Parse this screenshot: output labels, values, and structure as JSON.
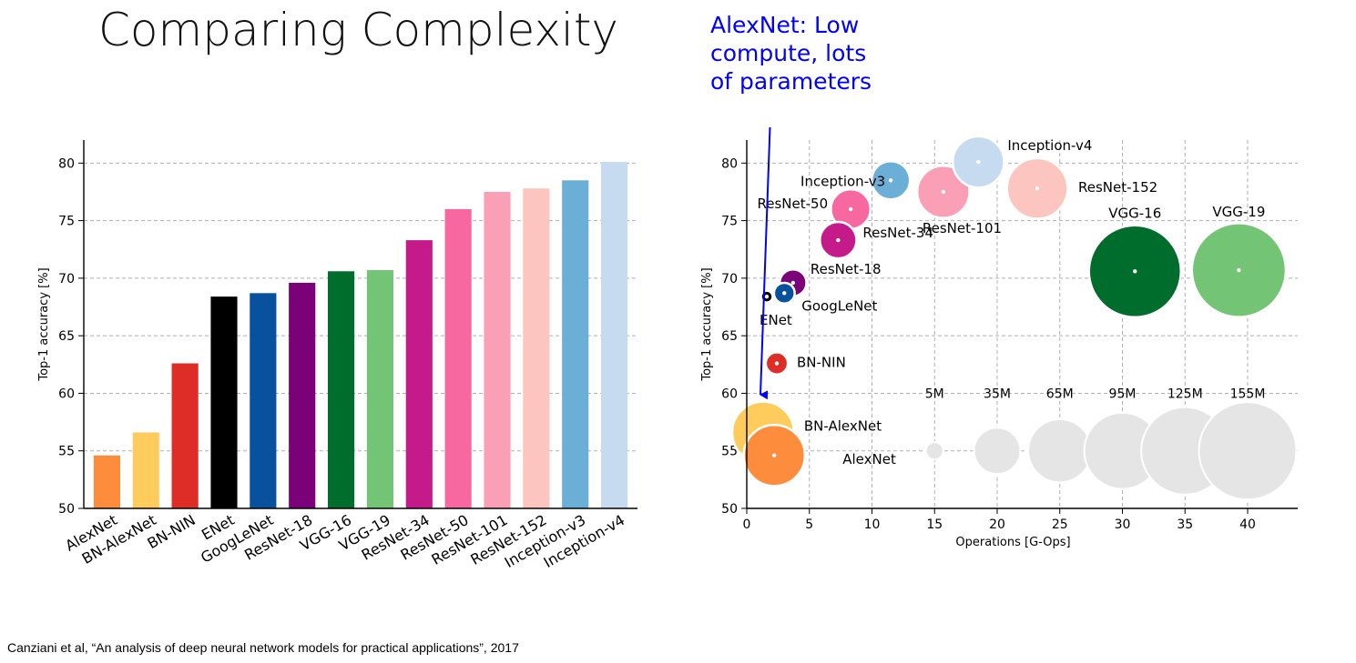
{
  "title": "Comparing Complexity",
  "callout": {
    "lines": [
      "AlexNet: Low",
      "compute, lots",
      "of parameters"
    ],
    "color": "#0000ff"
  },
  "citation": "Canziani et al, “An analysis of deep neural network models for practical applications”, 2017",
  "chart_data": [
    {
      "type": "bar",
      "xlabel": "",
      "ylabel": "Top-1 accuracy [%]",
      "ylim": [
        50,
        82
      ],
      "yticks": [
        50,
        55,
        60,
        65,
        70,
        75,
        80
      ],
      "grid": true,
      "categories": [
        "AlexNet",
        "BN-AlexNet",
        "BN-NIN",
        "ENet",
        "GoogLeNet",
        "ResNet-18",
        "VGG-16",
        "VGG-19",
        "ResNet-34",
        "ResNet-50",
        "ResNet-101",
        "ResNet-152",
        "Inception-v3",
        "Inception-v4"
      ],
      "values": [
        54.6,
        56.6,
        62.6,
        68.4,
        68.7,
        69.6,
        70.6,
        70.7,
        73.3,
        76.0,
        77.5,
        77.8,
        78.5,
        80.1
      ],
      "colors": [
        "#fd8d3c",
        "#fecc5c",
        "#de2d26",
        "#000000",
        "#08519c",
        "#7a0177",
        "#006d2c",
        "#74c476",
        "#c51b8a",
        "#f768a1",
        "#fa9fb5",
        "#fcc5c0",
        "#6baed6",
        "#c6dbef"
      ]
    },
    {
      "type": "scatter",
      "xlabel": "Operations [G-Ops]",
      "ylabel": "Top-1 accuracy [%]",
      "xlim": [
        0,
        44
      ],
      "ylim": [
        50,
        82
      ],
      "xticks": [
        0,
        5,
        10,
        15,
        20,
        25,
        30,
        35,
        40
      ],
      "yticks": [
        50,
        55,
        60,
        65,
        70,
        75,
        80
      ],
      "grid": true,
      "points": [
        {
          "label": "AlexNet",
          "ops": 2.2,
          "acc": 54.6,
          "params_m": 61,
          "color": "#fd8d3c"
        },
        {
          "label": "BN-AlexNet",
          "ops": 1.3,
          "acc": 56.6,
          "params_m": 62,
          "color": "#fecc5c"
        },
        {
          "label": "BN-NIN",
          "ops": 2.4,
          "acc": 62.6,
          "params_m": 8,
          "color": "#de2d26"
        },
        {
          "label": "ENet",
          "ops": 1.6,
          "acc": 68.4,
          "params_m": 0.4,
          "color": "#000000"
        },
        {
          "label": "GoogLeNet",
          "ops": 3.0,
          "acc": 68.7,
          "params_m": 7,
          "color": "#08519c"
        },
        {
          "label": "ResNet-18",
          "ops": 3.7,
          "acc": 69.6,
          "params_m": 11.7,
          "color": "#7a0177"
        },
        {
          "label": "VGG-16",
          "ops": 31.0,
          "acc": 70.6,
          "params_m": 138,
          "color": "#006d2c"
        },
        {
          "label": "VGG-19",
          "ops": 39.3,
          "acc": 70.7,
          "params_m": 144,
          "color": "#74c476"
        },
        {
          "label": "ResNet-34",
          "ops": 7.3,
          "acc": 73.3,
          "params_m": 21.8,
          "color": "#c51b8a"
        },
        {
          "label": "ResNet-50",
          "ops": 8.3,
          "acc": 76.0,
          "params_m": 25.6,
          "color": "#f768a1"
        },
        {
          "label": "ResNet-101",
          "ops": 15.7,
          "acc": 77.5,
          "params_m": 44.5,
          "color": "#fa9fb5"
        },
        {
          "label": "ResNet-152",
          "ops": 23.2,
          "acc": 77.8,
          "params_m": 60,
          "color": "#fcc5c0"
        },
        {
          "label": "Inception-v3",
          "ops": 11.5,
          "acc": 78.5,
          "params_m": 24,
          "color": "#6baed6"
        },
        {
          "label": "Inception-v4",
          "ops": 18.5,
          "acc": 80.1,
          "params_m": 43,
          "color": "#c6dbef"
        }
      ],
      "size_legend": {
        "labels": [
          "5M",
          "35M",
          "65M",
          "95M",
          "125M",
          "155M"
        ],
        "params_m": [
          5,
          35,
          65,
          95,
          125,
          155
        ],
        "ops": [
          15,
          20,
          25,
          30,
          35,
          40
        ],
        "acc": 55,
        "color": "#e5e5e5"
      }
    }
  ]
}
